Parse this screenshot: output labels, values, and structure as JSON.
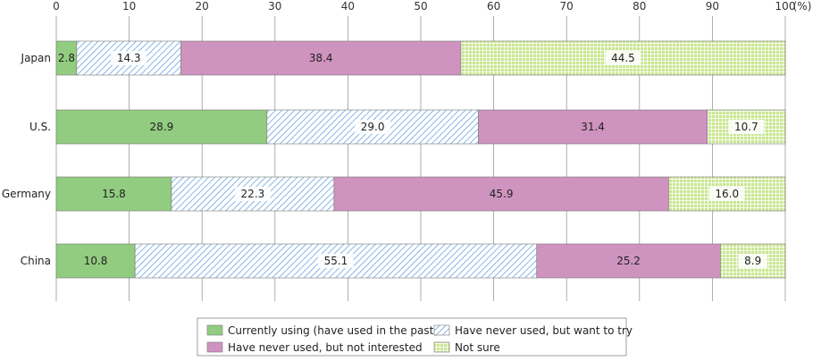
{
  "chart_data": {
    "type": "bar",
    "orientation": "horizontal",
    "stacked": true,
    "x_unit_label": "(%)",
    "xlim": [
      0,
      100
    ],
    "x_ticks": [
      "0",
      "10",
      "20",
      "30",
      "40",
      "50",
      "60",
      "70",
      "80",
      "90",
      "100"
    ],
    "grid": true,
    "legend_position": "bottom",
    "categories": [
      "Japan",
      "U.S.",
      "Germany",
      "China"
    ],
    "series": [
      {
        "name": "Currently using (have used in the past)",
        "values": [
          2.8,
          28.9,
          15.8,
          10.8
        ],
        "color": "#92cc80",
        "pattern": "solid"
      },
      {
        "name": "Have never used, but want to try",
        "values": [
          14.3,
          29.0,
          22.3,
          55.1
        ],
        "color": "#7fb2e6",
        "pattern": "diagonal-hatch"
      },
      {
        "name": "Have never used, but not interested",
        "values": [
          38.4,
          31.4,
          45.9,
          25.2
        ],
        "color": "#cf93c0",
        "pattern": "solid"
      },
      {
        "name": "Not sure",
        "values": [
          44.5,
          10.7,
          16.0,
          8.9
        ],
        "color": "#c9e690",
        "pattern": "grid"
      }
    ],
    "value_labels": [
      [
        "2.8",
        "14.3",
        "38.4",
        "44.5"
      ],
      [
        "28.9",
        "29.0",
        "31.4",
        "10.7"
      ],
      [
        "15.8",
        "22.3",
        "45.9",
        "16.0"
      ],
      [
        "10.8",
        "55.1",
        "25.2",
        "8.9"
      ]
    ]
  }
}
